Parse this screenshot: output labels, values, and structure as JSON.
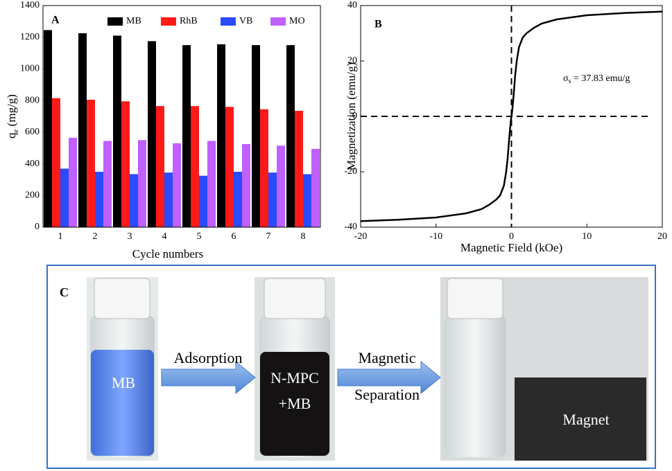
{
  "chart_data": [
    {
      "type": "bar",
      "panel": "A",
      "xlabel": "Cycle numbers",
      "ylabel": {
        "main": "q",
        "sub": "e",
        "unit": " (mg/g)"
      },
      "categories": [
        "1",
        "2",
        "3",
        "4",
        "5",
        "6",
        "7",
        "8"
      ],
      "series": [
        {
          "name": "MB",
          "color": "#000000",
          "values": [
            1245,
            1225,
            1210,
            1175,
            1150,
            1155,
            1150,
            1150
          ]
        },
        {
          "name": "RhB",
          "color": "#ff1a1a",
          "values": [
            815,
            805,
            795,
            765,
            765,
            760,
            745,
            735
          ]
        },
        {
          "name": "VB",
          "color": "#2b4bff",
          "values": [
            370,
            350,
            335,
            345,
            325,
            350,
            345,
            335
          ]
        },
        {
          "name": "MO",
          "color": "#c060ff",
          "values": [
            565,
            545,
            550,
            530,
            545,
            525,
            515,
            495
          ]
        }
      ],
      "ylim": [
        0,
        1400
      ],
      "yticks": [
        0,
        200,
        400,
        600,
        800,
        1000,
        1200,
        1400
      ],
      "legend": "top-right"
    },
    {
      "type": "line",
      "panel": "B",
      "xlabel": "Magnetic Field (kOe)",
      "ylabel": "Magnetization (emu/g)",
      "annotation": {
        "main": "σ",
        "sub": "s",
        "rest": " = 37.83 emu/g"
      },
      "x": [
        -20,
        -15,
        -10,
        -6,
        -4,
        -3,
        -2,
        -1.5,
        -1,
        -0.7,
        -0.5,
        -0.3,
        -0.1,
        0,
        0.1,
        0.3,
        0.5,
        0.7,
        1,
        1.5,
        2,
        3,
        4,
        6,
        10,
        15,
        20
      ],
      "series": [
        {
          "name": "M",
          "color": "#000000",
          "values": [
            -37.8,
            -37.3,
            -36.5,
            -35,
            -33.5,
            -32,
            -30,
            -28.5,
            -25,
            -20,
            -15,
            -8,
            -2,
            0,
            2,
            8,
            15,
            20,
            25,
            28.5,
            30,
            32,
            33.5,
            35,
            36.5,
            37.3,
            37.8
          ]
        }
      ],
      "xlim": [
        -20,
        20
      ],
      "xticks": [
        -20,
        -10,
        0,
        10,
        20
      ],
      "ylim": [
        -40,
        40
      ],
      "yticks": [
        -40,
        -20,
        0,
        20,
        40
      ],
      "hlines": [
        0
      ],
      "vlines": [
        0
      ]
    }
  ],
  "panel_c": {
    "label": "C",
    "vial1": "MB",
    "arrow1": "Adsorption",
    "vial2": [
      "N-MPC",
      "+MB"
    ],
    "arrow2": [
      "Magnetic",
      "Separation"
    ],
    "magnet": "Magnet"
  }
}
